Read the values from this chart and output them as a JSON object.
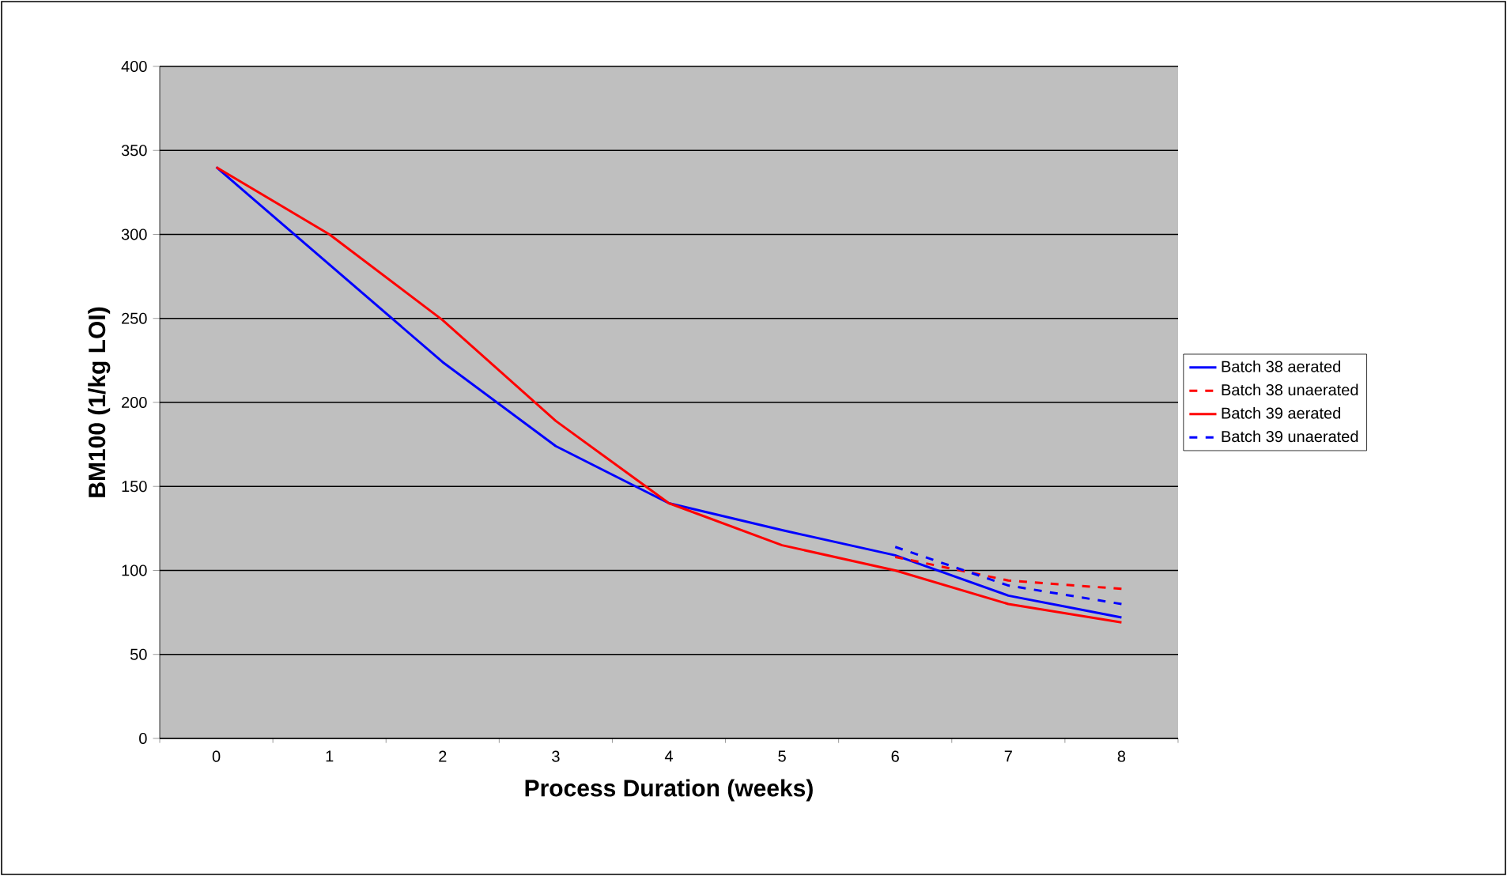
{
  "chart_data": {
    "type": "line",
    "xlabel": "Process Duration  (weeks)",
    "ylabel": "BM100 (1/kg LOI)",
    "categories": [
      "0",
      "1",
      "2",
      "3",
      "4",
      "5",
      "6",
      "7",
      "8"
    ],
    "series": [
      {
        "name": "Batch 38 aerated",
        "color": "#0000ff",
        "line_style": "solid",
        "values": [
          340,
          282,
          224,
          174,
          140,
          124,
          109,
          85,
          72
        ]
      },
      {
        "name": "Batch 38 unaerated",
        "color": "#ff0000",
        "line_style": "dashed",
        "values": [
          null,
          null,
          null,
          null,
          null,
          null,
          108,
          94,
          89
        ]
      },
      {
        "name": "Batch 39 aerated",
        "color": "#ff0000",
        "line_style": "solid",
        "values": [
          340,
          300,
          249,
          189,
          140,
          115,
          100,
          80,
          69
        ]
      },
      {
        "name": "Batch 39 unaerated",
        "color": "#0000ff",
        "line_style": "dashed",
        "values": [
          null,
          null,
          null,
          null,
          null,
          null,
          114,
          91,
          80
        ]
      }
    ],
    "ylim": [
      0,
      400
    ],
    "yticks": [
      0,
      50,
      100,
      150,
      200,
      250,
      300,
      350,
      400
    ],
    "grid": "y",
    "legend": "right",
    "marker": "none"
  }
}
